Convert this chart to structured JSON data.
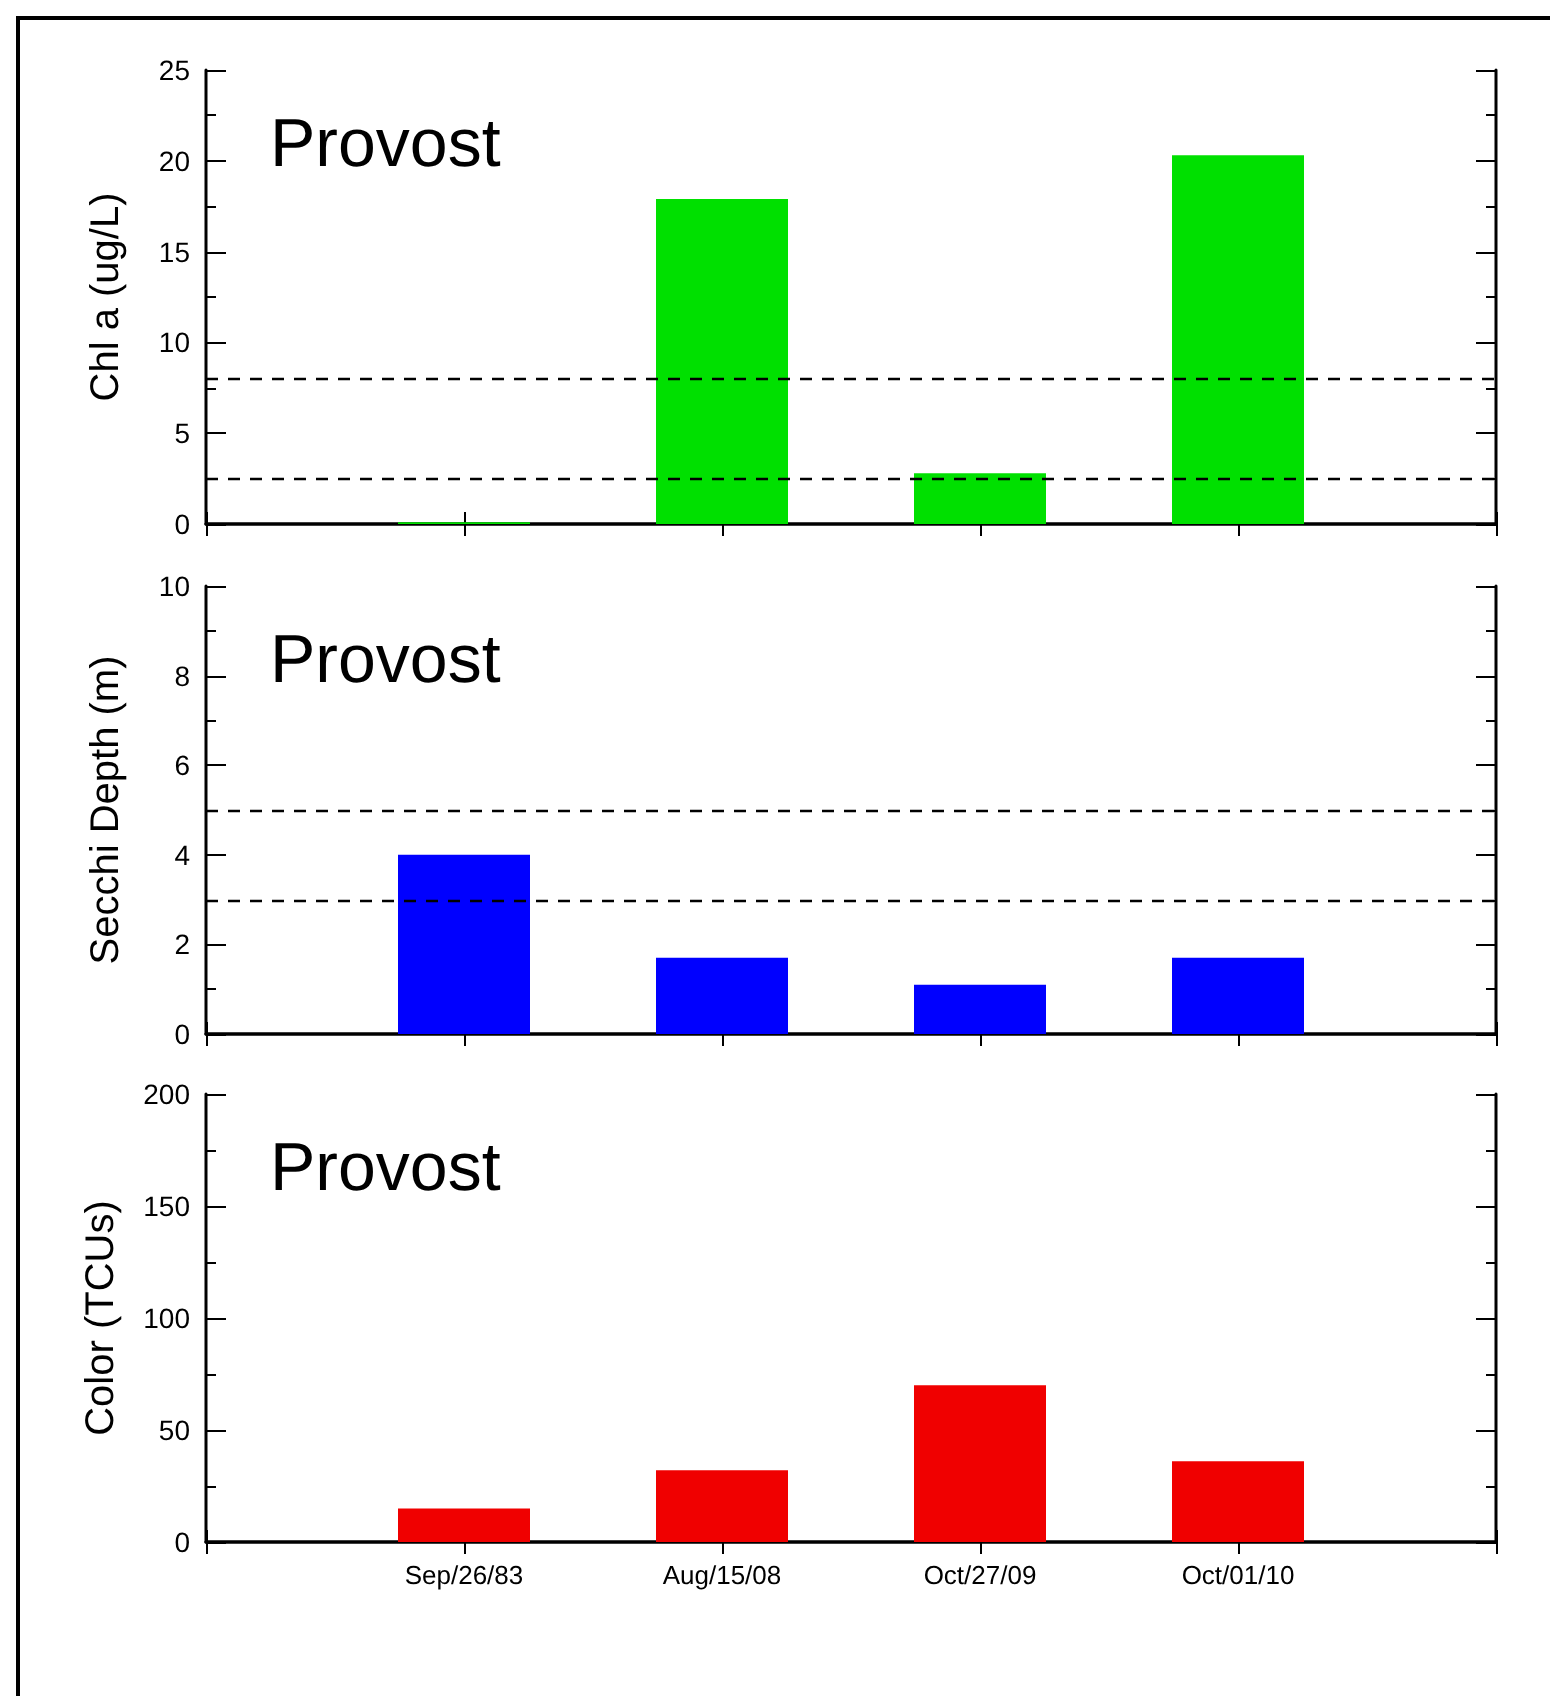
{
  "chart_data": [
    {
      "type": "bar",
      "categories": [
        null,
        null,
        null,
        null,
        null,
        null
      ],
      "values": [
        null,
        0.1,
        17.9,
        2.8,
        20.3,
        null
      ],
      "color": "#00e000",
      "ylabel": "Chl a (ug/L)",
      "ylim": [
        0,
        25
      ],
      "yticks": [
        0,
        5,
        10,
        15,
        20,
        25
      ],
      "annotations": [
        "Provost"
      ],
      "ref_lines": [
        {
          "axis": "y",
          "value": 8,
          "line_style": "dashed",
          "color": "#000000"
        },
        {
          "axis": "y",
          "value": 2.5,
          "line_style": "dashed",
          "color": "#000000"
        }
      ],
      "tick_labels": "y"
    },
    {
      "type": "bar",
      "categories": [
        null,
        null,
        null,
        null,
        null,
        null
      ],
      "values": [
        null,
        4.0,
        1.7,
        1.1,
        1.7,
        null
      ],
      "color": "#0000ff",
      "ylabel": "Secchi Depth (m)",
      "ylim": [
        0,
        10
      ],
      "yticks": [
        0,
        2,
        4,
        6,
        8,
        10
      ],
      "annotations": [
        "Provost"
      ],
      "ref_lines": [
        {
          "axis": "y",
          "value": 5,
          "line_style": "dashed",
          "color": "#000000"
        },
        {
          "axis": "y",
          "value": 3,
          "line_style": "dashed",
          "color": "#000000"
        }
      ],
      "tick_labels": "y"
    },
    {
      "type": "bar",
      "categories": [
        null,
        "Sep/26/83",
        "Aug/15/08",
        "Oct/27/09",
        "Oct/01/10",
        null
      ],
      "values": [
        null,
        15,
        32,
        70,
        36,
        null
      ],
      "color": "#f00000",
      "ylabel": "Color (TCUs)",
      "ylim": [
        0,
        200
      ],
      "yticks": [
        0,
        50,
        100,
        150,
        200
      ],
      "annotations": [
        "Provost"
      ]
    }
  ]
}
